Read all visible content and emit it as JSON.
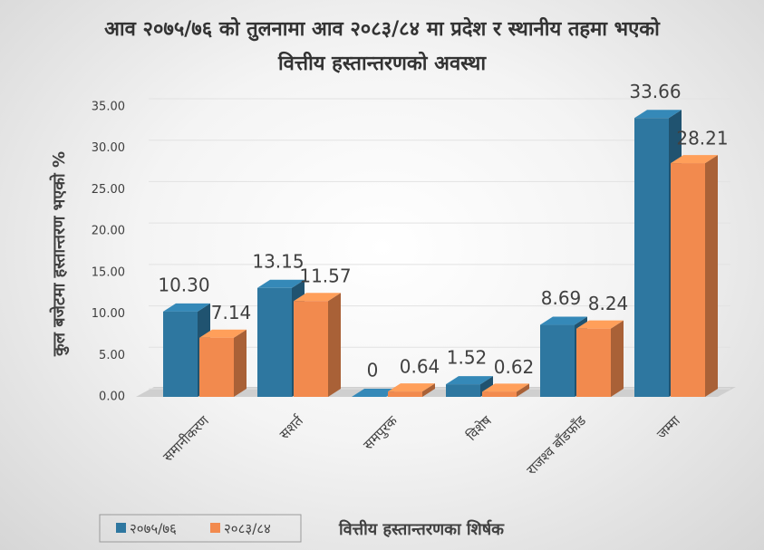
{
  "chart_data": {
    "type": "bar3d",
    "title": "आव २०७५/७६ को तुलनामा आव २०८३/८४ मा प्रदेश र स्थानीय तहमा भएको वित्तीय हस्तान्तरणको अवस्था",
    "y_label": "कुल बजेटमा हस्तान्तरण भएको %",
    "x_label": "वित्तीय हस्तान्तरणका शिर्षक",
    "categories": [
      "समानीकरण",
      "सशर्त",
      "समपुरक",
      "विशेष",
      "राजश्व बाँडफाँड",
      "जम्मा"
    ],
    "series": [
      {
        "name": "२०७५/७६",
        "color": "#2e77a0",
        "values": [
          10.3,
          13.15,
          0,
          1.52,
          8.69,
          33.66
        ],
        "value_labels": [
          "10.30",
          "13.15",
          "0",
          "1.52",
          "8.69",
          "33.66"
        ]
      },
      {
        "name": "२०८३/८४",
        "color": "#f28a4e",
        "values": [
          7.14,
          11.57,
          0.64,
          0.62,
          8.24,
          28.21
        ],
        "value_labels": [
          "7.14",
          "11.57",
          "0.64",
          "0.62",
          "8.24",
          "28.21"
        ]
      }
    ],
    "ylim": [
      0,
      35
    ],
    "yticks": [
      {
        "value": 0,
        "label": "0.00"
      },
      {
        "value": 5,
        "label": "5.00"
      },
      {
        "value": 10,
        "label": "10.00"
      },
      {
        "value": 15,
        "label": "15.00"
      },
      {
        "value": 20,
        "label": "20.00"
      },
      {
        "value": 25,
        "label": "25.00"
      },
      {
        "value": 30,
        "label": "30.00"
      },
      {
        "value": 35,
        "label": "35.00"
      }
    ],
    "grid": true,
    "legend_position": "bottom-left"
  }
}
